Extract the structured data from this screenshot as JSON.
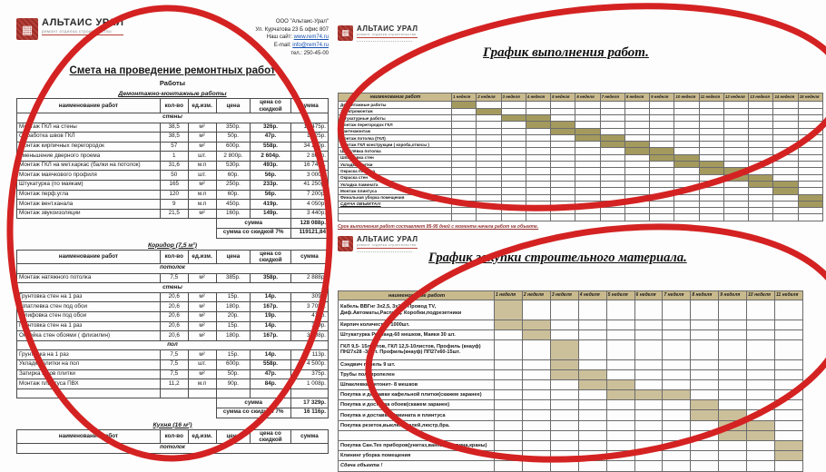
{
  "colors": {
    "annotation_red": "#d42222",
    "brand_red": "#a93530",
    "gantt_header_bg": "#c9ba8e",
    "gantt_bar_top": "#a49a5e",
    "gantt_bar_bottom": "#ccc09a",
    "link_blue": "#1550b0",
    "footer_red": "#943634"
  },
  "logo": {
    "name": "АЛЬТАИС УРАЛ",
    "tagline": "ремонт отделка строительство"
  },
  "contact": {
    "company": "ООО \"Альтаис-Урал\"",
    "address": "Ул. Курчатова 23 Б офис 807",
    "site_label": "Наш сайт: ",
    "site_link": "www.rem74.ru",
    "email_label": "E-mail: ",
    "email_link": "info@rem74.ru",
    "phone": "тел.: 250-45-00"
  },
  "estimate": {
    "title": "Смета на проведение ремонтных работ",
    "subtitle": "Работы",
    "columns": [
      "наименование работ",
      "кол-во",
      "ед.изм.",
      "цена",
      "цена со скидкой",
      "сумма"
    ],
    "sections": [
      {
        "title": "Демонтажно-монтажные работы",
        "groups": [
          {
            "name": "стены",
            "rows": [
              [
                "Монтаж ГКЛ на стены",
                "38,5",
                "м²",
                "350р.",
                "326р.",
                "13 475р."
              ],
              [
                "Обработка швов ГКЛ",
                "38,5",
                "м²",
                "50р.",
                "47р.",
                "1 925р."
              ],
              [
                "Монтаж кирпичных перегородок",
                "57",
                "м²",
                "600р.",
                "558р.",
                "34 200р."
              ],
              [
                "Уменьшение дверного проема",
                "1",
                "шт.",
                "2 800р.",
                "2 604р.",
                "2 800р."
              ],
              [
                "Монтаж ГКЛ на мет.каркас (балки на потолок)",
                "31,6",
                "м.п",
                "530р.",
                "493р.",
                "16 748р."
              ],
              [
                "Монтаж маячкового профиля",
                "50",
                "шт.",
                "60р.",
                "56р.",
                "3 000р."
              ],
              [
                "Штукатурка (по маякам)",
                "165",
                "м²",
                "250р.",
                "233р.",
                "41 250р."
              ],
              [
                "Монтаж перф.угла",
                "120",
                "м.п",
                "60р.",
                "56р.",
                "7 200р."
              ],
              [
                "Монтаж вент.канала",
                "9",
                "м.п",
                "450р.",
                "419р.",
                "4 050р."
              ],
              [
                "Монтаж звукоизоляции",
                "21,5",
                "м²",
                "160р.",
                "149р.",
                "3 440р."
              ]
            ]
          }
        ],
        "totals": [
          {
            "label": "сумма",
            "value": "128 088р."
          },
          {
            "label": "сумма со скидкой 7%",
            "value": "119121,84"
          }
        ]
      },
      {
        "title": "Коридор (7,5 м²)",
        "groups": [
          {
            "name": "потолок",
            "rows": [
              [
                "Монтаж натяжного потолка",
                "7,5",
                "м²",
                "385р.",
                "358р.",
                "2 888р."
              ]
            ]
          },
          {
            "name": "стены",
            "rows": [
              [
                "Грунтовка стен на 1 раз",
                "20,6",
                "м²",
                "15р.",
                "14р.",
                "309р."
              ],
              [
                "Шпатлевка стен под обои",
                "20,6",
                "м²",
                "180р.",
                "167р.",
                "3 708р."
              ],
              [
                "Шлифовка стен под обои",
                "20,6",
                "м²",
                "20р.",
                "19р.",
                "412р."
              ],
              [
                "Грунтовка стен на 1 раз",
                "20,6",
                "м²",
                "15р.",
                "14р.",
                "309р."
              ],
              [
                "Оклейка стен обоями ( флизилин)",
                "20,6",
                "м²",
                "180р.",
                "167р.",
                "3 708р."
              ]
            ]
          },
          {
            "name": "пол",
            "rows": [
              [
                "Грунтовка  на 1 раз",
                "7,5",
                "м²",
                "15р.",
                "14р.",
                "113р."
              ],
              [
                "Укладка плитки на пол",
                "7,5",
                "шт.",
                "600р.",
                "558р.",
                "4 500р."
              ],
              [
                "Затирка швов плитки",
                "7,5",
                "м²",
                "50р.",
                "47р.",
                "375р."
              ],
              [
                "Монтаж плинтуса ПВХ",
                "11,2",
                "м.п",
                "90р.",
                "84р.",
                "1 008р."
              ],
              [
                "",
                "",
                "",
                "",
                "",
                ""
              ]
            ]
          }
        ],
        "totals": [
          {
            "label": "сумма",
            "value": "17 329р."
          },
          {
            "label": "сумма со скидкой 7%",
            "value": "16 116р."
          }
        ]
      },
      {
        "title": "Кухня (16 м²)",
        "groups": [
          {
            "name": "потолок",
            "rows": []
          }
        ],
        "totals": []
      }
    ]
  },
  "gantt_top": {
    "title": "График выполнения работ.",
    "name_col_header": "наименование работ",
    "weeks": [
      "1 неделя",
      "2 неделя",
      "3 неделя",
      "4 неделя",
      "5 неделя",
      "6 неделя",
      "7 неделя",
      "8 неделя",
      "9 неделя",
      "10 неделя",
      "11 неделя",
      "12 неделя",
      "13 неделя",
      "14 неделя",
      "15 неделя"
    ],
    "rows": [
      {
        "label": "Демонтажные работы",
        "start": 1,
        "end": 1
      },
      {
        "label": "Электромонтаж",
        "start": 2,
        "end": 2
      },
      {
        "label": "Штукатурные работы",
        "start": 3,
        "end": 4
      },
      {
        "label": "Монтаж  перегородок ГКЛ",
        "start": 4,
        "end": 5
      },
      {
        "label": "Сантехмонтаж",
        "start": 5,
        "end": 6
      },
      {
        "label": "Монтаж потолка (ГКЛ)",
        "start": 6,
        "end": 7
      },
      {
        "label": "Монтаж ГКЛ конструкции ( короба,откосы )",
        "start": 7,
        "end": 8
      },
      {
        "label": "Шпатлёвка  потолка",
        "start": 8,
        "end": 9
      },
      {
        "label": "Шпаклевка стен",
        "start": 9,
        "end": 10
      },
      {
        "label": "Укладка плитки",
        "start": 10,
        "end": 11
      },
      {
        "label": "Окраска потолка",
        "start": 11,
        "end": 12
      },
      {
        "label": "Окраска стен",
        "start": 12,
        "end": 13
      },
      {
        "label": "Укладка ламината",
        "start": 13,
        "end": 14
      },
      {
        "label": "Монтаж плинтуса",
        "start": 14,
        "end": 14
      },
      {
        "label": "Финальная уборка помещения",
        "start": 15,
        "end": 15
      },
      {
        "label": "СДАЧА ОБЪЕКТА!!!",
        "start": 15,
        "end": 15,
        "emph": true
      },
      {
        "label": "",
        "start": 0,
        "end": 0
      },
      {
        "label": "",
        "start": 0,
        "end": 0
      }
    ],
    "footer": "Срок выполнения работ составляет 85-95 дней с момента начала работ на объекте."
  },
  "gantt_bottom": {
    "title": "График закупки строительного материала.",
    "name_col_header": "наименование работ",
    "weeks": [
      "1 неделя",
      "2 неделя",
      "3 неделя",
      "4 неделя",
      "5 неделя",
      "6 неделя",
      "7 неделя",
      "8 неделя",
      "9 неделя",
      "10 неделя",
      "11 неделя"
    ],
    "rows": [
      {
        "label": "Кабель ВВГнг 3х2,5, 3х1,5, Провод TV, Диф.Автоматы,Распред. Коробки,подрезетники",
        "start": 1,
        "end": 1,
        "tall": true
      },
      {
        "label": "Кирпич количество 1000шт.",
        "start": 1,
        "end": 2
      },
      {
        "label": "Штукатурка Ротбанд-60 мешков, Маяки 30 шт.",
        "start": 2,
        "end": 2
      },
      {
        "label": "ГКЛ 9,5- 15листов, ГКЛ 12,5-10листов, Профиль (кнауф) ПН27х28 -30шт. Профиль(кнауф) ПП27х60-15шт.",
        "start": 3,
        "end": 3,
        "tall": true
      },
      {
        "label": "Сэндвич панель 9 шт.",
        "start": 3,
        "end": 3
      },
      {
        "label": "Трубы полипропелен",
        "start": 3,
        "end": 4
      },
      {
        "label": "Шпаклевка Витонит- 8 мешков",
        "start": 4,
        "end": 5
      },
      {
        "label": "Покупка и доставки кафельной плитки(скажем заранее)",
        "start": 5,
        "end": 7
      },
      {
        "label": "Покупка и доставка обоев(скажем заранее)",
        "start": 8,
        "end": 8
      },
      {
        "label": "Покупка и доставка Ламината и плинтуса",
        "start": 8,
        "end": 9
      },
      {
        "label": "Покупка резеток,выключателей,люстр,бра.",
        "start": 9,
        "end": 10
      },
      {
        "label": "",
        "start": 9,
        "end": 10
      },
      {
        "label": "Покупка Сан.Тех приборов(унитаз,ванна,раковина,краны)",
        "start": 11,
        "end": 11
      },
      {
        "label": "Клининг уборка помещения",
        "start": 11,
        "end": 11
      },
      {
        "label": "Сдача объекта !",
        "start": 0,
        "end": 0,
        "ital": true
      }
    ]
  }
}
